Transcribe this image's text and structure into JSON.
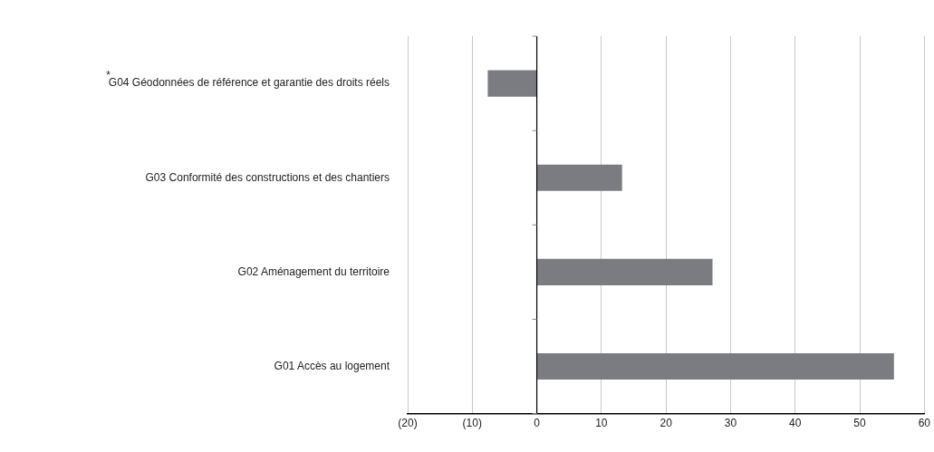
{
  "chart_data": {
    "type": "bar",
    "orientation": "horizontal",
    "categories": [
      "G04 Géodonnées de référence et garantie des droits réels",
      "G03 Conformité des constructions et des chantiers",
      "G02 Aménagement du territoire",
      "G01 Accès au logement"
    ],
    "values": [
      -7.6,
      13.2,
      27.2,
      55.3
    ],
    "color": "#7b7c81",
    "xlim": [
      -20,
      60
    ],
    "xticks": [
      {
        "value": -20,
        "label": "(20)"
      },
      {
        "value": -10,
        "label": "(10)"
      },
      0,
      10,
      20,
      30,
      40,
      50,
      60
    ],
    "grid": "x",
    "annotations": [
      "*"
    ]
  }
}
